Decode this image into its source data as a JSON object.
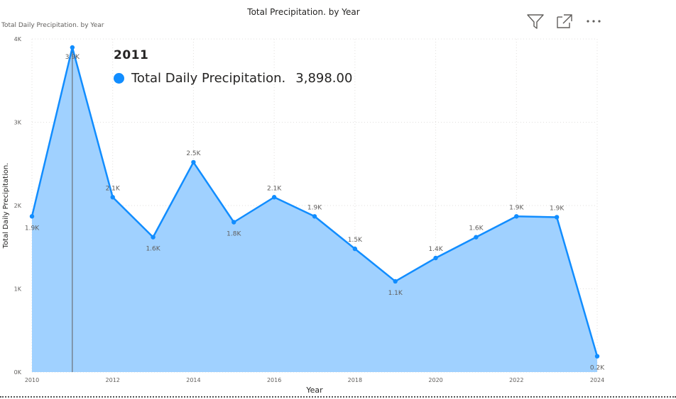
{
  "header": {
    "title": "Total Precipitation. by Year",
    "subtitle": "Total Daily Precipitation. by Year"
  },
  "toolbar": {
    "filter_icon": "filter-icon",
    "focus_icon": "focus-mode-icon",
    "more_icon": "more-options-icon"
  },
  "tooltip": {
    "year": "2011",
    "series_name": "Total Daily Precipitation.",
    "value": "3,898.00",
    "color": "#118dff"
  },
  "chart_data": {
    "type": "area",
    "xlabel": "Year",
    "ylabel": "Total Daily Precipitation.",
    "x": [
      2010,
      2011,
      2012,
      2013,
      2014,
      2015,
      2016,
      2017,
      2018,
      2019,
      2020,
      2021,
      2022,
      2023,
      2024
    ],
    "values": [
      1870,
      3898,
      2100,
      1620,
      2520,
      1800,
      2100,
      1870,
      1480,
      1090,
      1370,
      1620,
      1870,
      1860,
      190
    ],
    "data_labels": [
      "1.9K",
      "3.9K",
      "2.1K",
      "1.6K",
      "2.5K",
      "1.8K",
      "2.1K",
      "1.9K",
      "1.5K",
      "1.1K",
      "1.4K",
      "1.6K",
      "1.9K",
      "1.9K",
      "0.2K"
    ],
    "x_ticks": [
      "2010",
      "2012",
      "2014",
      "2016",
      "2018",
      "2020",
      "2022",
      "2024"
    ],
    "y_ticks": [
      "0K",
      "1K",
      "2K",
      "3K",
      "4K"
    ],
    "xlim": [
      2010,
      2024
    ],
    "ylim": [
      0,
      4000
    ],
    "highlight_x": 2011,
    "line_color": "#118dff",
    "fill_color": "#a0d1ff",
    "grid": true
  }
}
